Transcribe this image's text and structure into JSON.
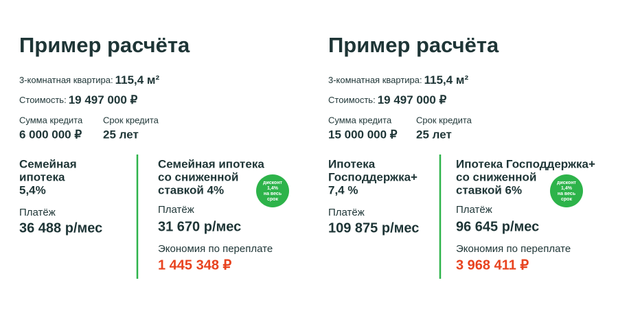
{
  "panels": [
    {
      "title": "Пример расчёта",
      "apartment_label": "3-комнатная квартира:",
      "apartment_value": "115,4 м²",
      "cost_label": "Стоимость:",
      "cost_value": "19 497 000 ₽",
      "loan_label": "Сумма кредита",
      "loan_value": "6 000 000 ₽",
      "term_label": "Срок кредита",
      "term_value": "25 лет",
      "base": {
        "title_lines": [
          "Семейная",
          "ипотека",
          "5,4%"
        ],
        "payment_label": "Платёж",
        "payment_value": "36 488 р/мес"
      },
      "discounted": {
        "title_lines": [
          "Семейная ипотека",
          "со сниженной",
          "ставкой 4%"
        ],
        "badge_lines": [
          "дисконт",
          "1,4%",
          "на весь",
          "срок"
        ],
        "payment_label": "Платёж",
        "payment_value": "31 670 р/мес",
        "savings_label": "Экономия по переплате",
        "savings_value": "1 445 348 ₽"
      }
    },
    {
      "title": "Пример расчёта",
      "apartment_label": "3-комнатная квартира:",
      "apartment_value": "115,4 м²",
      "cost_label": "Стоимость:",
      "cost_value": "19 497 000 ₽",
      "loan_label": "Сумма кредита",
      "loan_value": "15 000 000 ₽",
      "term_label": "Срок кредита",
      "term_value": "25 лет",
      "base": {
        "title_lines": [
          "Ипотека",
          "Господдержка+",
          "7,4 %"
        ],
        "payment_label": "Платёж",
        "payment_value": "109 875 р/мес"
      },
      "discounted": {
        "title_lines": [
          "Ипотека Господдержка+",
          "со сниженной",
          "ставкой 6%"
        ],
        "badge_lines": [
          "дисконт",
          "1,4%",
          "на весь",
          "срок"
        ],
        "payment_label": "Платёж",
        "payment_value": "96 645 р/мес",
        "savings_label": "Экономия по переплате",
        "savings_value": "3 968 411 ₽"
      }
    }
  ]
}
